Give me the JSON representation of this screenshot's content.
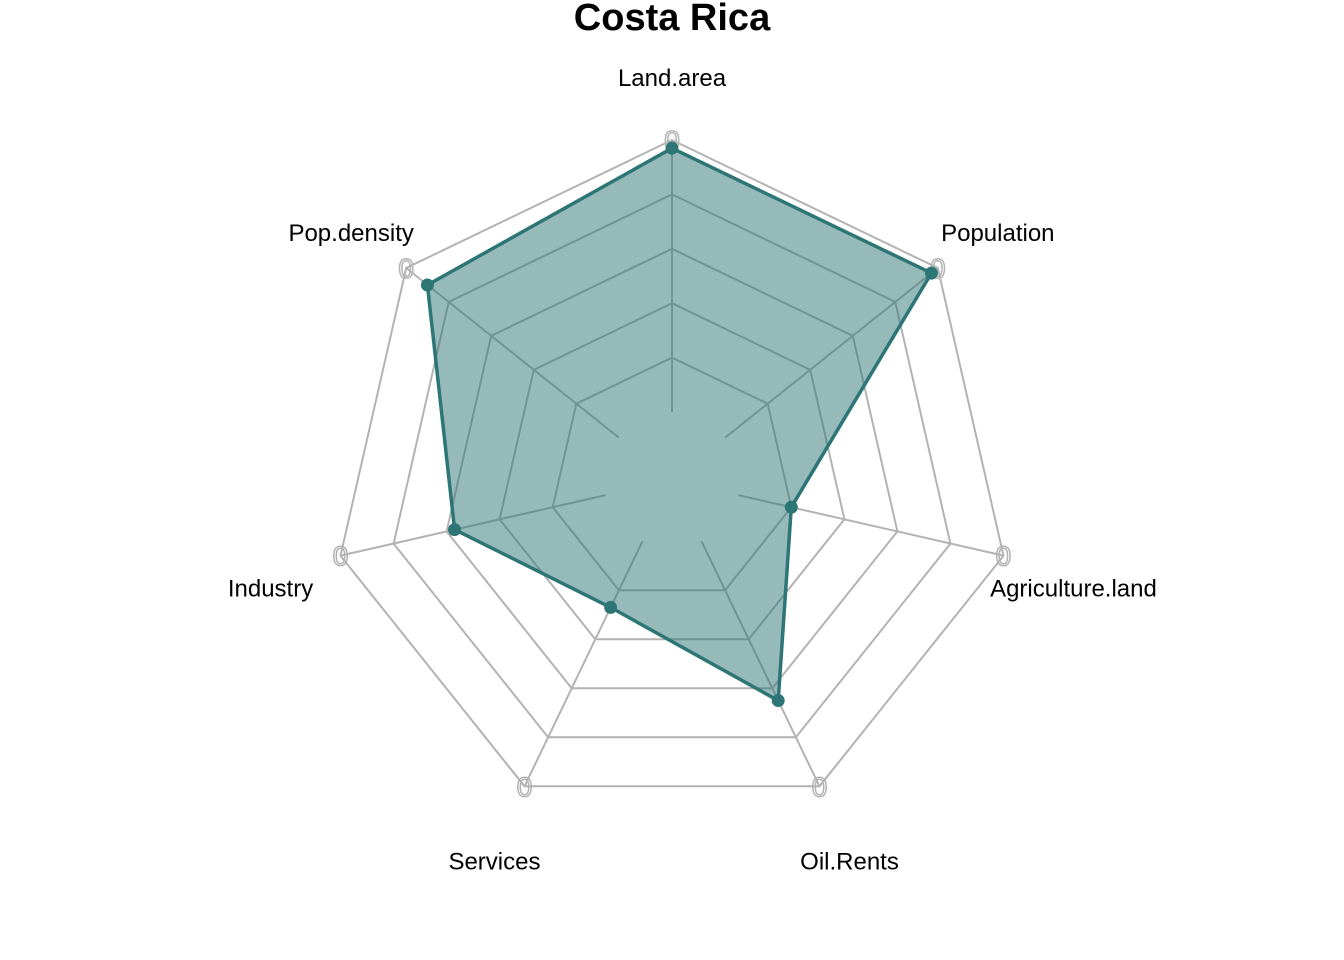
{
  "chart_data": {
    "type": "radar",
    "title": "Costa Rica",
    "axes": [
      "Land.area",
      "Population",
      "Agriculture.land",
      "Oil.Rents",
      "Services",
      "Industry",
      "Pop.density"
    ],
    "axis_tick_label": "0",
    "range": [
      0,
      1
    ],
    "grid_levels": 5,
    "series": [
      {
        "values": [
          0.97,
          0.97,
          0.2,
          0.65,
          0.27,
          0.57,
          0.9
        ]
      }
    ],
    "colors": {
      "series_line": "#2e7575",
      "series_fill": "#2e7575",
      "series_fill_opacity": 0.5,
      "grid": "#b3b3b3"
    },
    "legend": "none"
  }
}
